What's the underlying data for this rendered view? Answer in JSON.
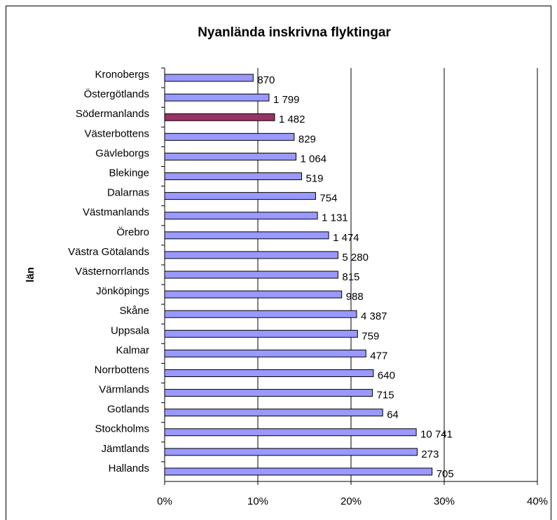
{
  "chart_data": {
    "type": "bar",
    "orientation": "horizontal",
    "title": "Nyanlända inskrivna flyktingar",
    "y_label": "län",
    "categories": [
      "Kronobergs",
      "Östergötlands",
      "Södermanlands",
      "Västerbottens",
      "Gävleborgs",
      "Blekinge",
      "Dalarnas",
      "Västmanlands",
      "Örebro",
      "Västra Götalands",
      "Västernorrlands",
      "Jönköpings",
      "Skåne",
      "Uppsala",
      "Kalmar",
      "Norrbottens",
      "Värmlands",
      "Gotlands",
      "Stockholms",
      "Jämtlands",
      "Hallands"
    ],
    "values": [
      9.5,
      11.2,
      11.8,
      13.9,
      14.1,
      14.7,
      16.2,
      16.4,
      17.6,
      18.6,
      18.6,
      19.0,
      20.6,
      20.7,
      21.6,
      22.4,
      22.3,
      23.4,
      27.0,
      27.1,
      28.7
    ],
    "counts": [
      "870",
      "1 799",
      "1 482",
      "829",
      "1 064",
      "519",
      "754",
      "1 131",
      "1 474",
      "5 280",
      "815",
      "988",
      "4 387",
      "759",
      "477",
      "640",
      "715",
      "64",
      "10 741",
      "273",
      "705"
    ],
    "colors": [
      "#9999ff",
      "#9999ff",
      "#993366",
      "#9999ff",
      "#9999ff",
      "#9999ff",
      "#9999ff",
      "#9999ff",
      "#9999ff",
      "#9999ff",
      "#9999ff",
      "#9999ff",
      "#9999ff",
      "#9999ff",
      "#9999ff",
      "#9999ff",
      "#9999ff",
      "#9999ff",
      "#9999ff",
      "#9999ff",
      "#9999ff"
    ],
    "xlim": [
      0,
      40
    ],
    "xticks": [
      {
        "value": 0,
        "label": "0%"
      },
      {
        "value": 10,
        "label": "10%"
      },
      {
        "value": 20,
        "label": "20%"
      },
      {
        "value": 30,
        "label": "30%"
      },
      {
        "value": 40,
        "label": "40%"
      }
    ],
    "grid": true
  }
}
